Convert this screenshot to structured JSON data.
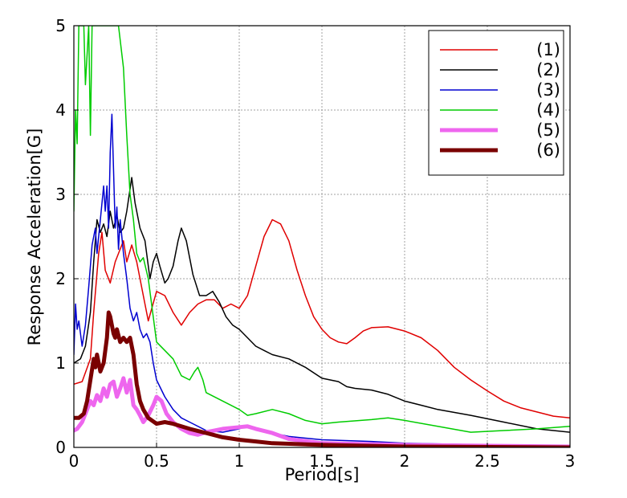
{
  "chart_data": {
    "type": "line",
    "title": "",
    "xlabel": "Period[s]",
    "ylabel": "Response Acceleration[G]",
    "xlim": [
      0,
      3
    ],
    "ylim": [
      0,
      5
    ],
    "xticks": [
      0,
      0.5,
      1,
      1.5,
      2,
      2.5,
      3
    ],
    "yticks": [
      0,
      1,
      2,
      3,
      4,
      5
    ],
    "xtick_labels": [
      "0",
      "0.5",
      "1",
      "1.5",
      "2",
      "2.5",
      "3"
    ],
    "ytick_labels": [
      "0",
      "1",
      "2",
      "3",
      "4",
      "5"
    ],
    "grid": true,
    "legend_position": "top-right",
    "series": [
      {
        "name": "(1)",
        "color": "#e00000",
        "line_width": 1.5,
        "points": [
          [
            0,
            0.75
          ],
          [
            0.05,
            0.78
          ],
          [
            0.1,
            1.05
          ],
          [
            0.12,
            1.6
          ],
          [
            0.15,
            2.3
          ],
          [
            0.17,
            2.55
          ],
          [
            0.19,
            2.1
          ],
          [
            0.22,
            1.95
          ],
          [
            0.25,
            2.2
          ],
          [
            0.27,
            2.3
          ],
          [
            0.3,
            2.45
          ],
          [
            0.32,
            2.2
          ],
          [
            0.35,
            2.4
          ],
          [
            0.38,
            2.2
          ],
          [
            0.42,
            1.8
          ],
          [
            0.45,
            1.5
          ],
          [
            0.5,
            1.85
          ],
          [
            0.55,
            1.8
          ],
          [
            0.6,
            1.6
          ],
          [
            0.65,
            1.45
          ],
          [
            0.7,
            1.6
          ],
          [
            0.75,
            1.7
          ],
          [
            0.8,
            1.75
          ],
          [
            0.85,
            1.75
          ],
          [
            0.9,
            1.65
          ],
          [
            0.95,
            1.7
          ],
          [
            1.0,
            1.65
          ],
          [
            1.05,
            1.8
          ],
          [
            1.1,
            2.15
          ],
          [
            1.15,
            2.5
          ],
          [
            1.2,
            2.7
          ],
          [
            1.25,
            2.65
          ],
          [
            1.3,
            2.45
          ],
          [
            1.35,
            2.1
          ],
          [
            1.4,
            1.8
          ],
          [
            1.45,
            1.55
          ],
          [
            1.5,
            1.4
          ],
          [
            1.55,
            1.3
          ],
          [
            1.6,
            1.25
          ],
          [
            1.65,
            1.23
          ],
          [
            1.7,
            1.3
          ],
          [
            1.75,
            1.38
          ],
          [
            1.8,
            1.42
          ],
          [
            1.9,
            1.43
          ],
          [
            2.0,
            1.38
          ],
          [
            2.1,
            1.3
          ],
          [
            2.2,
            1.15
          ],
          [
            2.3,
            0.95
          ],
          [
            2.4,
            0.8
          ],
          [
            2.5,
            0.67
          ],
          [
            2.6,
            0.55
          ],
          [
            2.7,
            0.47
          ],
          [
            2.8,
            0.42
          ],
          [
            2.9,
            0.37
          ],
          [
            3.0,
            0.35
          ]
        ]
      },
      {
        "name": "(2)",
        "color": "#000000",
        "line_width": 1.5,
        "points": [
          [
            0,
            1.0
          ],
          [
            0.04,
            1.05
          ],
          [
            0.07,
            1.2
          ],
          [
            0.1,
            1.6
          ],
          [
            0.12,
            2.2
          ],
          [
            0.14,
            2.7
          ],
          [
            0.16,
            2.55
          ],
          [
            0.18,
            2.65
          ],
          [
            0.2,
            2.5
          ],
          [
            0.22,
            2.8
          ],
          [
            0.24,
            2.6
          ],
          [
            0.26,
            2.75
          ],
          [
            0.28,
            2.55
          ],
          [
            0.3,
            2.6
          ],
          [
            0.32,
            2.8
          ],
          [
            0.35,
            3.2
          ],
          [
            0.37,
            2.9
          ],
          [
            0.4,
            2.6
          ],
          [
            0.43,
            2.45
          ],
          [
            0.46,
            2.0
          ],
          [
            0.48,
            2.2
          ],
          [
            0.5,
            2.3
          ],
          [
            0.52,
            2.15
          ],
          [
            0.55,
            1.95
          ],
          [
            0.57,
            2.0
          ],
          [
            0.6,
            2.15
          ],
          [
            0.63,
            2.45
          ],
          [
            0.65,
            2.6
          ],
          [
            0.68,
            2.45
          ],
          [
            0.72,
            2.05
          ],
          [
            0.76,
            1.8
          ],
          [
            0.8,
            1.8
          ],
          [
            0.84,
            1.85
          ],
          [
            0.88,
            1.72
          ],
          [
            0.92,
            1.55
          ],
          [
            0.96,
            1.45
          ],
          [
            1.0,
            1.4
          ],
          [
            1.05,
            1.3
          ],
          [
            1.1,
            1.2
          ],
          [
            1.15,
            1.15
          ],
          [
            1.2,
            1.1
          ],
          [
            1.3,
            1.05
          ],
          [
            1.4,
            0.95
          ],
          [
            1.5,
            0.82
          ],
          [
            1.6,
            0.78
          ],
          [
            1.65,
            0.72
          ],
          [
            1.7,
            0.7
          ],
          [
            1.8,
            0.68
          ],
          [
            1.9,
            0.63
          ],
          [
            2.0,
            0.55
          ],
          [
            2.1,
            0.5
          ],
          [
            2.2,
            0.45
          ],
          [
            2.4,
            0.38
          ],
          [
            2.6,
            0.3
          ],
          [
            2.8,
            0.22
          ],
          [
            3.0,
            0.18
          ]
        ]
      },
      {
        "name": "(3)",
        "color": "#0000d0",
        "line_width": 1.5,
        "points": [
          [
            0,
            1.1
          ],
          [
            0.01,
            1.7
          ],
          [
            0.02,
            1.4
          ],
          [
            0.03,
            1.5
          ],
          [
            0.05,
            1.2
          ],
          [
            0.07,
            1.45
          ],
          [
            0.09,
            1.9
          ],
          [
            0.11,
            2.4
          ],
          [
            0.13,
            2.6
          ],
          [
            0.14,
            2.3
          ],
          [
            0.16,
            2.7
          ],
          [
            0.18,
            3.1
          ],
          [
            0.19,
            2.8
          ],
          [
            0.2,
            3.1
          ],
          [
            0.21,
            2.6
          ],
          [
            0.22,
            3.5
          ],
          [
            0.23,
            3.95
          ],
          [
            0.24,
            3.3
          ],
          [
            0.25,
            2.6
          ],
          [
            0.26,
            2.85
          ],
          [
            0.27,
            2.35
          ],
          [
            0.28,
            2.7
          ],
          [
            0.3,
            2.3
          ],
          [
            0.32,
            2.0
          ],
          [
            0.34,
            1.65
          ],
          [
            0.36,
            1.5
          ],
          [
            0.38,
            1.6
          ],
          [
            0.4,
            1.4
          ],
          [
            0.42,
            1.3
          ],
          [
            0.44,
            1.35
          ],
          [
            0.46,
            1.25
          ],
          [
            0.48,
            1.0
          ],
          [
            0.5,
            0.8
          ],
          [
            0.55,
            0.6
          ],
          [
            0.6,
            0.45
          ],
          [
            0.65,
            0.35
          ],
          [
            0.7,
            0.3
          ],
          [
            0.8,
            0.2
          ],
          [
            0.9,
            0.18
          ],
          [
            1.0,
            0.22
          ],
          [
            1.05,
            0.26
          ],
          [
            1.1,
            0.22
          ],
          [
            1.2,
            0.17
          ],
          [
            1.3,
            0.13
          ],
          [
            1.5,
            0.09
          ],
          [
            1.8,
            0.07
          ],
          [
            2.0,
            0.05
          ],
          [
            2.5,
            0.03
          ],
          [
            3.0,
            0.02
          ]
        ]
      },
      {
        "name": "(4)",
        "color": "#00cc00",
        "line_width": 1.5,
        "points": [
          [
            0,
            2.8
          ],
          [
            0.01,
            4.0
          ],
          [
            0.02,
            3.6
          ],
          [
            0.03,
            5.0
          ],
          [
            0.06,
            5.0
          ],
          [
            0.07,
            4.3
          ],
          [
            0.09,
            5.0
          ],
          [
            0.1,
            3.7
          ],
          [
            0.11,
            5.0
          ],
          [
            0.12,
            5.0
          ],
          [
            0.27,
            5.0
          ],
          [
            0.3,
            4.5
          ],
          [
            0.32,
            3.7
          ],
          [
            0.34,
            3.0
          ],
          [
            0.36,
            2.7
          ],
          [
            0.38,
            2.3
          ],
          [
            0.4,
            2.2
          ],
          [
            0.42,
            2.25
          ],
          [
            0.45,
            2.0
          ],
          [
            0.47,
            1.7
          ],
          [
            0.5,
            1.25
          ],
          [
            0.55,
            1.15
          ],
          [
            0.6,
            1.05
          ],
          [
            0.65,
            0.85
          ],
          [
            0.7,
            0.8
          ],
          [
            0.73,
            0.9
          ],
          [
            0.75,
            0.95
          ],
          [
            0.78,
            0.8
          ],
          [
            0.8,
            0.65
          ],
          [
            0.9,
            0.55
          ],
          [
            1.0,
            0.45
          ],
          [
            1.05,
            0.38
          ],
          [
            1.1,
            0.4
          ],
          [
            1.2,
            0.45
          ],
          [
            1.3,
            0.4
          ],
          [
            1.4,
            0.32
          ],
          [
            1.5,
            0.28
          ],
          [
            1.6,
            0.3
          ],
          [
            1.8,
            0.33
          ],
          [
            1.9,
            0.35
          ],
          [
            2.0,
            0.32
          ],
          [
            2.2,
            0.25
          ],
          [
            2.4,
            0.18
          ],
          [
            2.6,
            0.2
          ],
          [
            2.8,
            0.22
          ],
          [
            3.0,
            0.25
          ]
        ]
      },
      {
        "name": "(5)",
        "color": "#ee66ee",
        "line_width": 5,
        "points": [
          [
            0,
            0.2
          ],
          [
            0.02,
            0.22
          ],
          [
            0.05,
            0.3
          ],
          [
            0.08,
            0.45
          ],
          [
            0.1,
            0.55
          ],
          [
            0.12,
            0.5
          ],
          [
            0.14,
            0.62
          ],
          [
            0.16,
            0.55
          ],
          [
            0.18,
            0.7
          ],
          [
            0.2,
            0.6
          ],
          [
            0.22,
            0.75
          ],
          [
            0.24,
            0.78
          ],
          [
            0.26,
            0.6
          ],
          [
            0.28,
            0.7
          ],
          [
            0.3,
            0.82
          ],
          [
            0.32,
            0.65
          ],
          [
            0.34,
            0.8
          ],
          [
            0.36,
            0.5
          ],
          [
            0.38,
            0.45
          ],
          [
            0.4,
            0.38
          ],
          [
            0.42,
            0.3
          ],
          [
            0.45,
            0.38
          ],
          [
            0.48,
            0.5
          ],
          [
            0.5,
            0.6
          ],
          [
            0.53,
            0.55
          ],
          [
            0.56,
            0.4
          ],
          [
            0.6,
            0.3
          ],
          [
            0.65,
            0.22
          ],
          [
            0.7,
            0.17
          ],
          [
            0.75,
            0.15
          ],
          [
            0.8,
            0.18
          ],
          [
            0.9,
            0.22
          ],
          [
            1.0,
            0.24
          ],
          [
            1.05,
            0.25
          ],
          [
            1.1,
            0.22
          ],
          [
            1.2,
            0.17
          ],
          [
            1.3,
            0.1
          ],
          [
            1.5,
            0.05
          ],
          [
            2.0,
            0.03
          ],
          [
            3.0,
            0.01
          ]
        ]
      },
      {
        "name": "(6)",
        "color": "#7a0000",
        "line_width": 5,
        "points": [
          [
            0,
            0.35
          ],
          [
            0.03,
            0.35
          ],
          [
            0.06,
            0.4
          ],
          [
            0.08,
            0.55
          ],
          [
            0.1,
            0.8
          ],
          [
            0.12,
            1.05
          ],
          [
            0.13,
            0.95
          ],
          [
            0.14,
            1.1
          ],
          [
            0.16,
            0.9
          ],
          [
            0.18,
            1.0
          ],
          [
            0.2,
            1.3
          ],
          [
            0.21,
            1.6
          ],
          [
            0.22,
            1.55
          ],
          [
            0.24,
            1.35
          ],
          [
            0.25,
            1.3
          ],
          [
            0.26,
            1.4
          ],
          [
            0.28,
            1.25
          ],
          [
            0.3,
            1.3
          ],
          [
            0.32,
            1.25
          ],
          [
            0.34,
            1.3
          ],
          [
            0.36,
            1.1
          ],
          [
            0.38,
            0.75
          ],
          [
            0.4,
            0.55
          ],
          [
            0.42,
            0.45
          ],
          [
            0.45,
            0.35
          ],
          [
            0.5,
            0.28
          ],
          [
            0.55,
            0.3
          ],
          [
            0.6,
            0.28
          ],
          [
            0.7,
            0.22
          ],
          [
            0.8,
            0.17
          ],
          [
            0.9,
            0.12
          ],
          [
            1.0,
            0.09
          ],
          [
            1.1,
            0.07
          ],
          [
            1.2,
            0.05
          ],
          [
            1.5,
            0.03
          ],
          [
            2.0,
            0.01
          ],
          [
            3.0,
            0.0
          ]
        ]
      }
    ]
  }
}
